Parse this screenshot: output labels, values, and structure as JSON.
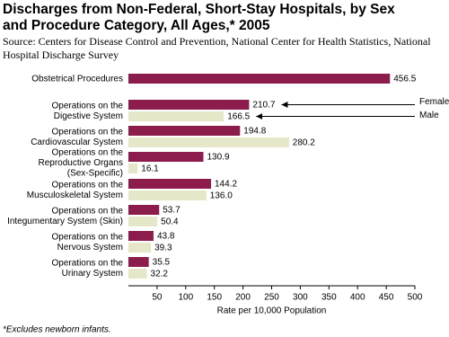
{
  "chart_data": {
    "type": "barh",
    "title": [
      "Discharges from Non-Federal, Short-Stay Hospitals, by Sex",
      "and Procedure Category, All Ages,* 2005"
    ],
    "source": [
      "Source: Centers for Disease Control and Prevention, National Center for Health Statistics, National",
      "Hospital Discharge Survey"
    ],
    "categories": [
      "Obstetrical Procedures",
      "Operations on the\nDigestive System",
      "Operations on the\nCardiovascular System",
      "Operations on the\nReproductive Organs\n(Sex-Specific)",
      "Operations on the\nMusculoskeletal System",
      "Operations on the\nIntegumentary System (Skin)",
      "Operations on the\nNervous System",
      "Operations on the\nUrinary System"
    ],
    "series": [
      {
        "name": "Female",
        "color": "#8c1c4c",
        "values": [
          456.5,
          210.7,
          194.8,
          130.9,
          144.2,
          53.7,
          43.8,
          35.5
        ],
        "value_labels": [
          "456.5",
          "210.7",
          "194.8",
          "130.9",
          "144.2",
          "53.7",
          "43.8",
          "35.5"
        ]
      },
      {
        "name": "Male",
        "color": "#e6e6c9",
        "values": [
          null,
          166.5,
          280.2,
          16.1,
          136.0,
          50.4,
          39.3,
          32.2
        ],
        "value_labels": [
          null,
          "166.5",
          "280.2",
          "16.1",
          "136.0",
          "50.4",
          "39.3",
          "32.2"
        ]
      }
    ],
    "xlim": [
      0,
      500
    ],
    "xticks": [
      50,
      100,
      150,
      200,
      250,
      300,
      350,
      400,
      450,
      500
    ],
    "xlabel": "Rate per 10,000 Population",
    "footnote": "*Excludes newborn infants."
  }
}
